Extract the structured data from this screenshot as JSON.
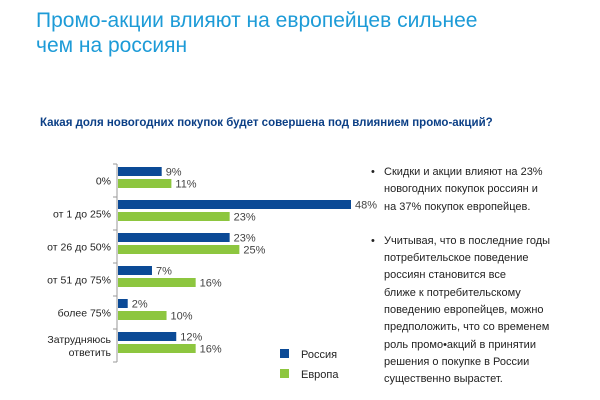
{
  "title_lines": [
    "Промо-акции влияют на европейцев сильнее",
    "чем на россиян"
  ],
  "colors": {
    "title": "#1d9bd7",
    "russia": "#0b4a96",
    "europe": "#8dc63f"
  },
  "chart_data": {
    "type": "bar",
    "orientation": "horizontal",
    "title": "Какая доля новогодних покупок будет совершена под влиянием промо-акций?",
    "categories": [
      [
        "0%"
      ],
      [
        "от 1 до 25%"
      ],
      [
        "от 26 до 50%"
      ],
      [
        "от 51 до 75%"
      ],
      [
        "более 75%"
      ],
      [
        "Затрудняюсь",
        "ответить"
      ]
    ],
    "series": [
      {
        "name": "Россия",
        "values": [
          9,
          48,
          23,
          7,
          2,
          12
        ]
      },
      {
        "name": "Европа",
        "values": [
          11,
          23,
          25,
          16,
          10,
          16
        ]
      }
    ],
    "value_suffix": "%",
    "xlim": [
      0,
      50
    ],
    "legend": "bottom-right"
  },
  "bullets": [
    {
      "lines": [
        "Скидки и акции влияют на 23%",
        "новогодних покупок россиян и",
        "на 37% покупок европейцев."
      ]
    },
    {
      "lines": [
        "Учитывая, что в последние годы",
        "потребительское поведение",
        "россиян становится все",
        "ближе к потребительскому",
        "поведению европейцев, можно",
        "предположить, что со временем",
        "роль промо•акций в принятии",
        "решения о покупке в России",
        "существенно вырастет."
      ]
    }
  ],
  "bullet_symbol": "•"
}
